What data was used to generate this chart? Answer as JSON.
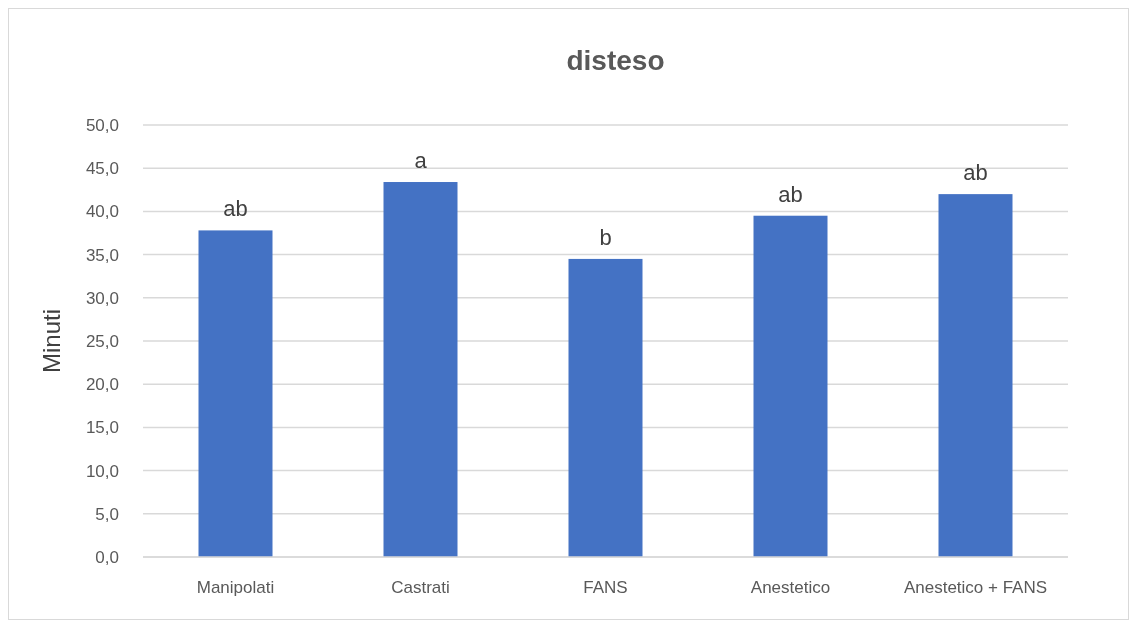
{
  "chart_data": {
    "type": "bar",
    "title": "disteso",
    "ylabel": "Minuti",
    "categories": [
      "Manipolati",
      "Castrati",
      "FANS",
      "Anestetico",
      "Anestetico + FANS"
    ],
    "values": [
      37.8,
      43.4,
      34.5,
      39.5,
      42.0
    ],
    "value_labels": [
      "ab",
      "a",
      "b",
      "ab",
      "ab"
    ],
    "color": "#4472c4",
    "ylim": [
      0,
      50
    ],
    "yticks": [
      {
        "value": 0,
        "label": "0,0"
      },
      {
        "value": 5,
        "label": "5,0"
      },
      {
        "value": 10,
        "label": "10,0"
      },
      {
        "value": 15,
        "label": "15,0"
      },
      {
        "value": 20,
        "label": "20,0"
      },
      {
        "value": 25,
        "label": "25,0"
      },
      {
        "value": 30,
        "label": "30,0"
      },
      {
        "value": 35,
        "label": "35,0"
      },
      {
        "value": 40,
        "label": "40,0"
      },
      {
        "value": 45,
        "label": "45,0"
      },
      {
        "value": 50,
        "label": "50,0"
      }
    ],
    "grid": "y"
  }
}
